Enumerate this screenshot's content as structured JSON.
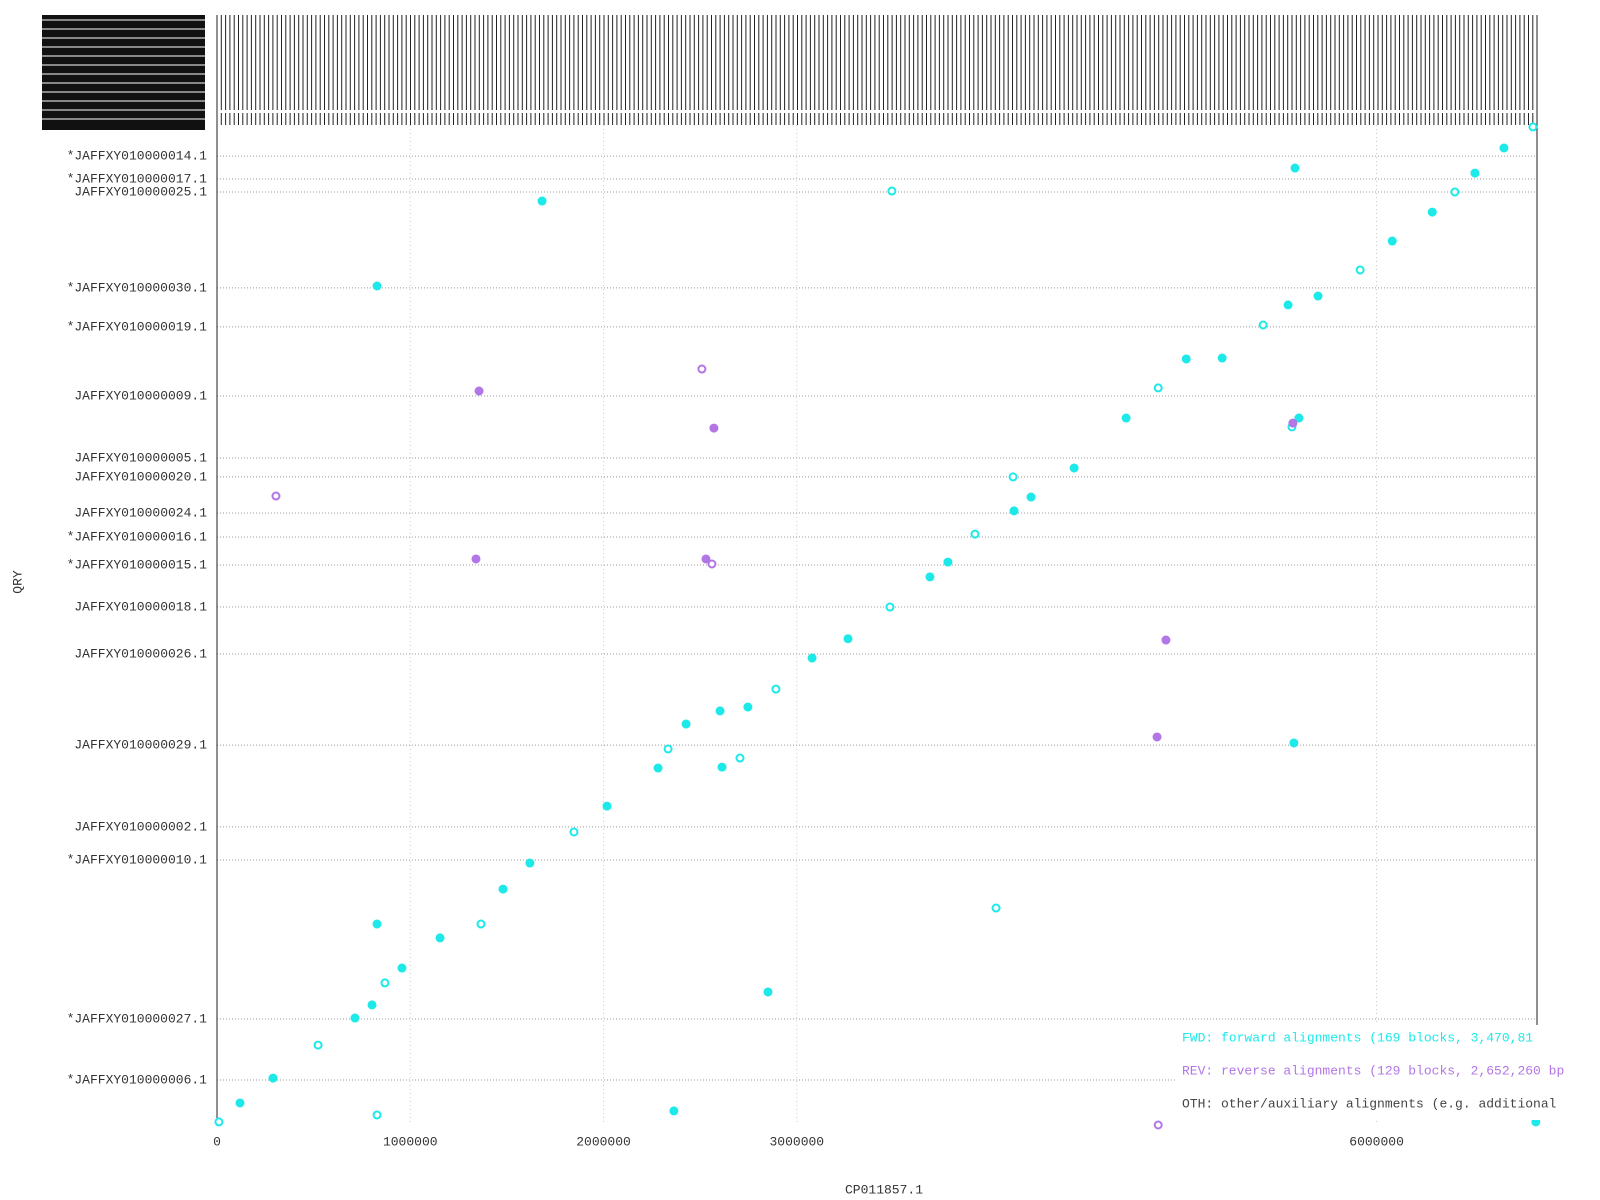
{
  "chart_data": {
    "type": "scatter",
    "x_label": "CP011857.1",
    "y_label": "QRY",
    "xlim": [
      0,
      6830000
    ],
    "xticks": [
      0,
      1000000,
      2000000,
      3000000,
      6000000
    ],
    "ylim": [
      0,
      5180000
    ],
    "yticks": [
      {
        "value": 5019000,
        "label": "*JAFFXY010000014.1"
      },
      {
        "value": 4900000,
        "label": "*JAFFXY010000017.1"
      },
      {
        "value": 4833000,
        "label": "JAFFXY010000025.1"
      },
      {
        "value": 4336000,
        "label": "*JAFFXY010000030.1"
      },
      {
        "value": 4134000,
        "label": "*JAFFXY010000019.1"
      },
      {
        "value": 3776000,
        "label": "JAFFXY010000009.1"
      },
      {
        "value": 3455000,
        "label": "JAFFXY010000005.1"
      },
      {
        "value": 3357000,
        "label": "JAFFXY010000020.1"
      },
      {
        "value": 3170000,
        "label": "JAFFXY010000024.1"
      },
      {
        "value": 3046000,
        "label": "*JAFFXY010000016.1"
      },
      {
        "value": 2901000,
        "label": "*JAFFXY010000015.1"
      },
      {
        "value": 2683000,
        "label": "JAFFXY010000018.1"
      },
      {
        "value": 2440000,
        "label": "JAFFXY010000026.1"
      },
      {
        "value": 1968000,
        "label": "JAFFXY010000029.1"
      },
      {
        "value": 1544000,
        "label": "JAFFXY010000002.1"
      },
      {
        "value": 1373000,
        "label": "*JAFFXY010000010.1"
      },
      {
        "value": 549000,
        "label": "*JAFFXY010000027.1"
      },
      {
        "value": 233000,
        "label": "*JAFFXY010000006.1"
      }
    ],
    "grid": true,
    "legend": "bottom-right",
    "series": [
      {
        "name": "FWD: forward alignments (169 blocks, 3,470,81",
        "color": "#1de9e9",
        "x": [
          10000,
          119000,
          290000,
          523000,
          714000,
          802000,
          869000,
          957000,
          1154000,
          1366000,
          1480000,
          1619000,
          1847000,
          2018000,
          2282000,
          2334000,
          2427000,
          2603000,
          2706000,
          2613000,
          2747000,
          2892000,
          3079000,
          3265000,
          3482000,
          3689000,
          3782000,
          3922000,
          4124000,
          4212000,
          4119000,
          4435000,
          4704000,
          4870000,
          5015000,
          5201000,
          5413000,
          5542000,
          5697000,
          5915000,
          6081000,
          6288000,
          6405000,
          6509000,
          6659000,
          6809000,
          5578000,
          1682000,
          3492000,
          828000,
          5572000,
          4031000,
          828000,
          2851000,
          828000,
          2364000,
          6824000,
          5562000,
          5598000
        ],
        "values": [
          16000,
          114000,
          243000,
          414000,
          554000,
          622000,
          736000,
          813000,
          969000,
          1041000,
          1222000,
          1357000,
          1518000,
          1652000,
          1849000,
          1948000,
          2077000,
          2145000,
          1901000,
          1854000,
          2165000,
          2258000,
          2419000,
          2519000,
          2683000,
          2839000,
          2916000,
          3061000,
          3181000,
          3253000,
          3357000,
          3403000,
          3662000,
          3818000,
          3968000,
          3973000,
          4144000,
          4248000,
          4294000,
          4429000,
          4579000,
          4729000,
          4833000,
          4931000,
          5061000,
          5170000,
          4957000,
          4786000,
          4838000,
          4346000,
          1979000,
          1124000,
          1041000,
          689000,
          52000,
          73000,
          16000,
          3616000,
          3662000
        ]
      },
      {
        "name": "REV: reverse alignments (129 blocks, 2,652,260 bp",
        "color": "#b376e6",
        "x": [
          2509000,
          1356000,
          2571000,
          305000,
          1340000,
          2530000,
          2561000,
          4910000,
          4864000,
          4870000,
          5567000
        ],
        "values": [
          3916000,
          3802000,
          3610000,
          3258000,
          2932000,
          2932000,
          2906000,
          2512000,
          2010000,
          0,
          3636000
        ]
      },
      {
        "name": "OTH: other/auxiliary alignments (e.g. additional",
        "color": "#444444",
        "x": [],
        "values": []
      }
    ]
  }
}
